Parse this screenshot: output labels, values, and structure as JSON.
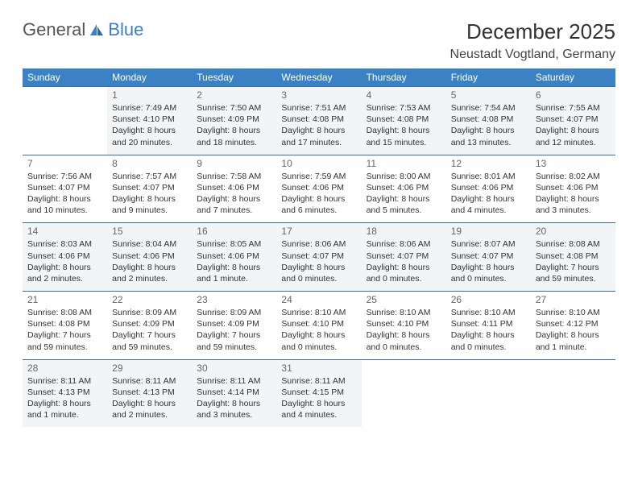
{
  "brand": {
    "part1": "General",
    "part2": "Blue"
  },
  "title": "December 2025",
  "location": "Neustadt Vogtland, Germany",
  "colors": {
    "header_bg": "#3b82c4",
    "header_text": "#ffffff",
    "row_border": "#3b6fa0",
    "shade_bg": "#f2f4f6",
    "text": "#333333",
    "brand_blue": "#3b7fc4"
  },
  "weekdays": [
    "Sunday",
    "Monday",
    "Tuesday",
    "Wednesday",
    "Thursday",
    "Friday",
    "Saturday"
  ],
  "weeks": [
    {
      "shade": true,
      "days": [
        null,
        {
          "n": "1",
          "sr": "Sunrise: 7:49 AM",
          "ss": "Sunset: 4:10 PM",
          "d1": "Daylight: 8 hours",
          "d2": "and 20 minutes."
        },
        {
          "n": "2",
          "sr": "Sunrise: 7:50 AM",
          "ss": "Sunset: 4:09 PM",
          "d1": "Daylight: 8 hours",
          "d2": "and 18 minutes."
        },
        {
          "n": "3",
          "sr": "Sunrise: 7:51 AM",
          "ss": "Sunset: 4:08 PM",
          "d1": "Daylight: 8 hours",
          "d2": "and 17 minutes."
        },
        {
          "n": "4",
          "sr": "Sunrise: 7:53 AM",
          "ss": "Sunset: 4:08 PM",
          "d1": "Daylight: 8 hours",
          "d2": "and 15 minutes."
        },
        {
          "n": "5",
          "sr": "Sunrise: 7:54 AM",
          "ss": "Sunset: 4:08 PM",
          "d1": "Daylight: 8 hours",
          "d2": "and 13 minutes."
        },
        {
          "n": "6",
          "sr": "Sunrise: 7:55 AM",
          "ss": "Sunset: 4:07 PM",
          "d1": "Daylight: 8 hours",
          "d2": "and 12 minutes."
        }
      ]
    },
    {
      "shade": false,
      "days": [
        {
          "n": "7",
          "sr": "Sunrise: 7:56 AM",
          "ss": "Sunset: 4:07 PM",
          "d1": "Daylight: 8 hours",
          "d2": "and 10 minutes."
        },
        {
          "n": "8",
          "sr": "Sunrise: 7:57 AM",
          "ss": "Sunset: 4:07 PM",
          "d1": "Daylight: 8 hours",
          "d2": "and 9 minutes."
        },
        {
          "n": "9",
          "sr": "Sunrise: 7:58 AM",
          "ss": "Sunset: 4:06 PM",
          "d1": "Daylight: 8 hours",
          "d2": "and 7 minutes."
        },
        {
          "n": "10",
          "sr": "Sunrise: 7:59 AM",
          "ss": "Sunset: 4:06 PM",
          "d1": "Daylight: 8 hours",
          "d2": "and 6 minutes."
        },
        {
          "n": "11",
          "sr": "Sunrise: 8:00 AM",
          "ss": "Sunset: 4:06 PM",
          "d1": "Daylight: 8 hours",
          "d2": "and 5 minutes."
        },
        {
          "n": "12",
          "sr": "Sunrise: 8:01 AM",
          "ss": "Sunset: 4:06 PM",
          "d1": "Daylight: 8 hours",
          "d2": "and 4 minutes."
        },
        {
          "n": "13",
          "sr": "Sunrise: 8:02 AM",
          "ss": "Sunset: 4:06 PM",
          "d1": "Daylight: 8 hours",
          "d2": "and 3 minutes."
        }
      ]
    },
    {
      "shade": true,
      "days": [
        {
          "n": "14",
          "sr": "Sunrise: 8:03 AM",
          "ss": "Sunset: 4:06 PM",
          "d1": "Daylight: 8 hours",
          "d2": "and 2 minutes."
        },
        {
          "n": "15",
          "sr": "Sunrise: 8:04 AM",
          "ss": "Sunset: 4:06 PM",
          "d1": "Daylight: 8 hours",
          "d2": "and 2 minutes."
        },
        {
          "n": "16",
          "sr": "Sunrise: 8:05 AM",
          "ss": "Sunset: 4:06 PM",
          "d1": "Daylight: 8 hours",
          "d2": "and 1 minute."
        },
        {
          "n": "17",
          "sr": "Sunrise: 8:06 AM",
          "ss": "Sunset: 4:07 PM",
          "d1": "Daylight: 8 hours",
          "d2": "and 0 minutes."
        },
        {
          "n": "18",
          "sr": "Sunrise: 8:06 AM",
          "ss": "Sunset: 4:07 PM",
          "d1": "Daylight: 8 hours",
          "d2": "and 0 minutes."
        },
        {
          "n": "19",
          "sr": "Sunrise: 8:07 AM",
          "ss": "Sunset: 4:07 PM",
          "d1": "Daylight: 8 hours",
          "d2": "and 0 minutes."
        },
        {
          "n": "20",
          "sr": "Sunrise: 8:08 AM",
          "ss": "Sunset: 4:08 PM",
          "d1": "Daylight: 7 hours",
          "d2": "and 59 minutes."
        }
      ]
    },
    {
      "shade": false,
      "days": [
        {
          "n": "21",
          "sr": "Sunrise: 8:08 AM",
          "ss": "Sunset: 4:08 PM",
          "d1": "Daylight: 7 hours",
          "d2": "and 59 minutes."
        },
        {
          "n": "22",
          "sr": "Sunrise: 8:09 AM",
          "ss": "Sunset: 4:09 PM",
          "d1": "Daylight: 7 hours",
          "d2": "and 59 minutes."
        },
        {
          "n": "23",
          "sr": "Sunrise: 8:09 AM",
          "ss": "Sunset: 4:09 PM",
          "d1": "Daylight: 7 hours",
          "d2": "and 59 minutes."
        },
        {
          "n": "24",
          "sr": "Sunrise: 8:10 AM",
          "ss": "Sunset: 4:10 PM",
          "d1": "Daylight: 8 hours",
          "d2": "and 0 minutes."
        },
        {
          "n": "25",
          "sr": "Sunrise: 8:10 AM",
          "ss": "Sunset: 4:10 PM",
          "d1": "Daylight: 8 hours",
          "d2": "and 0 minutes."
        },
        {
          "n": "26",
          "sr": "Sunrise: 8:10 AM",
          "ss": "Sunset: 4:11 PM",
          "d1": "Daylight: 8 hours",
          "d2": "and 0 minutes."
        },
        {
          "n": "27",
          "sr": "Sunrise: 8:10 AM",
          "ss": "Sunset: 4:12 PM",
          "d1": "Daylight: 8 hours",
          "d2": "and 1 minute."
        }
      ]
    },
    {
      "shade": true,
      "days": [
        {
          "n": "28",
          "sr": "Sunrise: 8:11 AM",
          "ss": "Sunset: 4:13 PM",
          "d1": "Daylight: 8 hours",
          "d2": "and 1 minute."
        },
        {
          "n": "29",
          "sr": "Sunrise: 8:11 AM",
          "ss": "Sunset: 4:13 PM",
          "d1": "Daylight: 8 hours",
          "d2": "and 2 minutes."
        },
        {
          "n": "30",
          "sr": "Sunrise: 8:11 AM",
          "ss": "Sunset: 4:14 PM",
          "d1": "Daylight: 8 hours",
          "d2": "and 3 minutes."
        },
        {
          "n": "31",
          "sr": "Sunrise: 8:11 AM",
          "ss": "Sunset: 4:15 PM",
          "d1": "Daylight: 8 hours",
          "d2": "and 4 minutes."
        },
        null,
        null,
        null
      ]
    }
  ]
}
